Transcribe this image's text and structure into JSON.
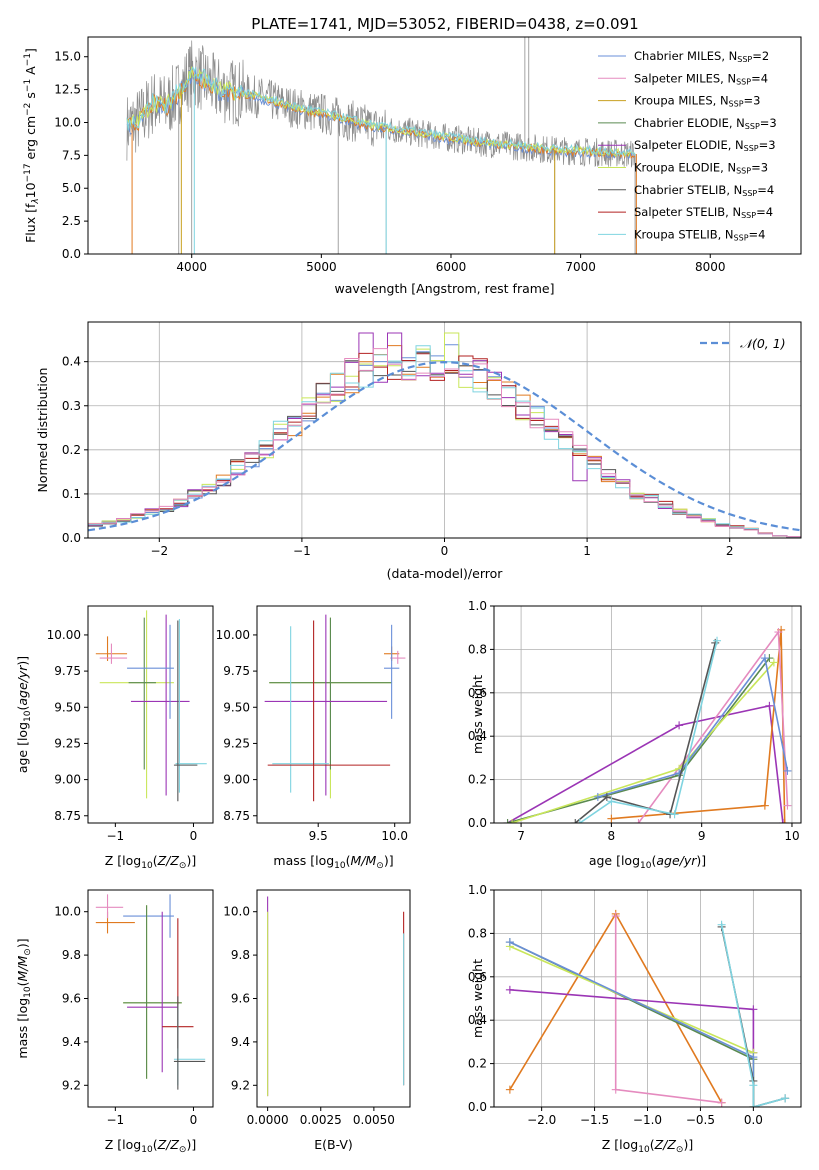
{
  "colors": {
    "chabrier_miles": "#6a8fd8",
    "salpeter_miles": "#e58bbf",
    "kroupa_miles": "#c8a020",
    "chabrier_elodie": "#5a8a50",
    "salpeter_elodie": "#9b35b5",
    "kroupa_elodie": "#c9e65a",
    "chabrier_stelib": "#555555",
    "salpeter_stelib": "#b22222",
    "kroupa_stelib": "#7fd4e0",
    "orange": "#e07a20",
    "gaussian": "#5b8ed6",
    "spectrum": "#8c8c8c"
  },
  "chart_data": [
    {
      "id": "spectrum",
      "type": "line",
      "title": "PLATE=1741, MJD=53052, FIBERID=0438, z=0.091",
      "xlabel": "wavelength [Angstrom, rest frame]",
      "ylabel": "Flux [f_λ 10^-17 erg cm^-2 s^-1 A^-1]",
      "xlim": [
        3200,
        8700
      ],
      "ylim": [
        0,
        16.5
      ],
      "xticks": [
        4000,
        5000,
        6000,
        7000,
        8000
      ],
      "yticks": [
        0.0,
        2.5,
        5.0,
        7.5,
        10.0,
        12.5,
        15.0
      ],
      "xtick_labels": [
        "4000",
        "5000",
        "6000",
        "7000",
        "8000"
      ],
      "ytick_labels": [
        "0.0",
        "2.5",
        "5.0",
        "7.5",
        "10.0",
        "12.5",
        "15.0"
      ],
      "legend_position": "top-right",
      "legend": [
        {
          "label": "Chabrier MILES, N",
          "sub": "SSP",
          "suffix": "=2",
          "color_key": "chabrier_miles"
        },
        {
          "label": "Salpeter MILES, N",
          "sub": "SSP",
          "suffix": "=4",
          "color_key": "salpeter_miles"
        },
        {
          "label": "Kroupa MILES, N",
          "sub": "SSP",
          "suffix": "=3",
          "color_key": "kroupa_miles"
        },
        {
          "label": "Chabrier ELODIE, N",
          "sub": "SSP",
          "suffix": "=3",
          "color_key": "chabrier_elodie"
        },
        {
          "label": "Salpeter ELODIE, N",
          "sub": "SSP",
          "suffix": "=3",
          "color_key": "salpeter_elodie"
        },
        {
          "label": "Kroupa ELODIE, N",
          "sub": "SSP",
          "suffix": "=3",
          "color_key": "kroupa_elodie"
        },
        {
          "label": "Chabrier STELIB, N",
          "sub": "SSP",
          "suffix": "=4",
          "color_key": "chabrier_stelib"
        },
        {
          "label": "Salpeter STELIB, N",
          "sub": "SSP",
          "suffix": "=4",
          "color_key": "salpeter_stelib"
        },
        {
          "label": "Kroupa STELIB, N",
          "sub": "SSP",
          "suffix": "=4",
          "color_key": "kroupa_stelib"
        }
      ],
      "continuum": {
        "x": [
          3500,
          3600,
          3700,
          3800,
          3900,
          4000,
          4100,
          4200,
          4400,
          4600,
          4800,
          5000,
          5200,
          5400,
          5600,
          5800,
          6000,
          6200,
          6400,
          6600,
          6800,
          7000,
          7200,
          7400
        ],
        "y": [
          9.7,
          10.2,
          11.5,
          11.2,
          12.3,
          13.8,
          13.2,
          12.5,
          12.2,
          11.7,
          11.1,
          10.7,
          10.2,
          9.7,
          9.4,
          9.1,
          8.8,
          8.5,
          8.3,
          8.1,
          7.9,
          7.8,
          7.7,
          7.6
        ]
      }
    },
    {
      "id": "residuals",
      "type": "line",
      "xlabel": "(data-model)/error",
      "ylabel": "Normed distribution",
      "xlim": [
        -2.5,
        2.5
      ],
      "ylim": [
        0,
        0.49
      ],
      "xticks": [
        -2,
        -1,
        0,
        1,
        2
      ],
      "xtick_labels": [
        "−2",
        "−1",
        "0",
        "1",
        "2"
      ],
      "yticks": [
        0.0,
        0.1,
        0.2,
        0.3,
        0.4
      ],
      "ytick_labels": [
        "0.0",
        "0.1",
        "0.2",
        "0.3",
        "0.4"
      ],
      "grid": true,
      "legend_position": "top-right",
      "legend_label": "𝒩(0, 1)",
      "bin_width": 0.1,
      "bin_start": -2.5,
      "base_histogram": [
        0.03,
        0.035,
        0.04,
        0.05,
        0.06,
        0.065,
        0.08,
        0.1,
        0.11,
        0.13,
        0.16,
        0.18,
        0.2,
        0.24,
        0.26,
        0.29,
        0.32,
        0.34,
        0.37,
        0.38,
        0.39,
        0.395,
        0.4,
        0.395,
        0.39,
        0.4,
        0.38,
        0.37,
        0.35,
        0.33,
        0.3,
        0.28,
        0.25,
        0.22,
        0.19,
        0.17,
        0.14,
        0.12,
        0.1,
        0.09,
        0.075,
        0.06,
        0.05,
        0.04,
        0.03,
        0.025,
        0.02,
        0.01,
        0.005,
        0.003
      ]
    },
    {
      "id": "age_vs_Z",
      "type": "scatter",
      "xlabel": "Z [log10(Z/Z⊙)]",
      "ylabel": "age  [log10(age/yr)]",
      "xlim": [
        -1.35,
        0.25
      ],
      "ylim": [
        8.7,
        10.2
      ],
      "xticks": [
        -1,
        0
      ],
      "xtick_labels": [
        "−1",
        "0"
      ],
      "yticks": [
        8.75,
        9.0,
        9.25,
        9.5,
        9.75,
        10.0
      ],
      "ytick_labels": [
        "8.75",
        "9.00",
        "9.25",
        "9.50",
        "9.75",
        "10.00"
      ],
      "points": [
        {
          "x": -1.1,
          "xerr": [
            0.15,
            0.25
          ],
          "y": 9.87,
          "yerr": [
            0.05,
            0.12
          ],
          "color_key": "orange"
        },
        {
          "x": -1.05,
          "xerr": [
            0.15,
            0.2
          ],
          "y": 9.84,
          "yerr": [
            0.04,
            0.1
          ],
          "color_key": "salpeter_miles"
        },
        {
          "x": -0.6,
          "xerr": [
            0.6,
            0.35
          ],
          "y": 9.67,
          "yerr": [
            0.8,
            0.5
          ],
          "color_key": "kroupa_elodie"
        },
        {
          "x": -0.63,
          "xerr": [
            0.2,
            0.15
          ],
          "y": 9.67,
          "yerr": [
            0.6,
            0.45
          ],
          "color_key": "chabrier_elodie"
        },
        {
          "x": -0.35,
          "xerr": [
            0.45,
            0.3
          ],
          "y": 9.54,
          "yerr": [
            0.65,
            0.6
          ],
          "color_key": "salpeter_elodie"
        },
        {
          "x": -0.3,
          "xerr": [
            0.55,
            0.05
          ],
          "y": 9.77,
          "yerr": [
            0.35,
            0.3
          ],
          "color_key": "chabrier_miles"
        },
        {
          "x": -0.18,
          "xerr": [
            0.05,
            0.35
          ],
          "y": 9.11,
          "yerr": [
            0.2,
            1.0
          ],
          "color_key": "kroupa_stelib"
        },
        {
          "x": -0.2,
          "xerr": [
            0.05,
            0.25
          ],
          "y": 9.1,
          "yerr": [
            0.25,
            1.0
          ],
          "color_key": "chabrier_stelib"
        }
      ]
    },
    {
      "id": "age_vs_mass",
      "type": "scatter",
      "xlabel": "mass [log10(M/M⊙)]",
      "ylabel": "",
      "xlim": [
        9.1,
        10.1
      ],
      "ylim": [
        8.7,
        10.2
      ],
      "xticks": [
        9.5,
        10.0
      ],
      "xtick_labels": [
        "9.5",
        "10.0"
      ],
      "yticks": [
        8.75,
        9.0,
        9.25,
        9.5,
        9.75,
        10.0
      ],
      "ytick_labels": [
        "8.75",
        "9.00",
        "9.25",
        "9.50",
        "9.75",
        "10.00"
      ],
      "points": [
        {
          "x": 9.98,
          "xerr": [
            0.05,
            0.05
          ],
          "y": 9.87,
          "yerr": [
            0.05,
            0.05
          ],
          "color_key": "orange"
        },
        {
          "x": 10.02,
          "xerr": [
            0.05,
            0.05
          ],
          "y": 9.84,
          "yerr": [
            0.04,
            0.05
          ],
          "color_key": "salpeter_miles"
        },
        {
          "x": 9.58,
          "xerr": [
            0.4,
            0.4
          ],
          "y": 9.67,
          "yerr": [
            0.8,
            0.45
          ],
          "color_key": "kroupa_elodie"
        },
        {
          "x": 9.58,
          "xerr": [
            0.4,
            0.4
          ],
          "y": 9.67,
          "yerr": [
            0.6,
            0.45
          ],
          "color_key": "chabrier_elodie"
        },
        {
          "x": 9.55,
          "xerr": [
            0.4,
            0.4
          ],
          "y": 9.54,
          "yerr": [
            0.65,
            0.6
          ],
          "color_key": "salpeter_elodie"
        },
        {
          "x": 9.98,
          "xerr": [
            0.05,
            0.05
          ],
          "y": 9.77,
          "yerr": [
            0.35,
            0.3
          ],
          "color_key": "chabrier_miles"
        },
        {
          "x": 9.32,
          "xerr": [
            0.12,
            0.25
          ],
          "y": 9.11,
          "yerr": [
            0.2,
            0.95
          ],
          "color_key": "kroupa_stelib"
        },
        {
          "x": 9.47,
          "xerr": [
            0.3,
            0.5
          ],
          "y": 9.1,
          "yerr": [
            0.25,
            1.0
          ],
          "color_key": "salpeter_stelib"
        }
      ]
    },
    {
      "id": "weight_vs_age",
      "type": "line",
      "xlabel": "age  [log10(age/yr)]",
      "ylabel": "mass weight",
      "xlim": [
        6.7,
        10.1
      ],
      "ylim": [
        0,
        1.0
      ],
      "xticks": [
        7,
        8,
        9,
        10
      ],
      "xtick_labels": [
        "7",
        "8",
        "9",
        "10"
      ],
      "yticks": [
        0.0,
        0.2,
        0.4,
        0.6,
        0.8,
        1.0
      ],
      "ytick_labels": [
        "0.0",
        "0.2",
        "0.4",
        "0.6",
        "0.8",
        "1.0"
      ],
      "grid": true,
      "series": [
        {
          "color_key": "salpeter_elodie",
          "x": [
            6.85,
            8.75,
            9.75,
            9.9
          ],
          "y": [
            0.0,
            0.45,
            0.54,
            0.0
          ]
        },
        {
          "color_key": "orange",
          "x": [
            8.0,
            9.7,
            9.88,
            9.92
          ],
          "y": [
            0.02,
            0.08,
            0.89,
            0.0
          ]
        },
        {
          "color_key": "salpeter_miles",
          "x": [
            8.3,
            9.85,
            9.95
          ],
          "y": [
            0.0,
            0.88,
            0.08
          ]
        },
        {
          "color_key": "chabrier_elodie",
          "x": [
            6.85,
            8.75,
            9.75
          ],
          "y": [
            0.0,
            0.22,
            0.76
          ]
        },
        {
          "color_key": "kroupa_elodie",
          "x": [
            6.9,
            8.75,
            9.8
          ],
          "y": [
            0.0,
            0.25,
            0.74
          ]
        },
        {
          "color_key": "chabrier_miles",
          "x": [
            7.85,
            8.75,
            9.7,
            9.95
          ],
          "y": [
            0.12,
            0.23,
            0.76,
            0.24
          ]
        },
        {
          "color_key": "chabrier_stelib",
          "x": [
            7.6,
            7.95,
            8.65,
            9.15
          ],
          "y": [
            0.0,
            0.12,
            0.04,
            0.83
          ]
        },
        {
          "color_key": "kroupa_stelib",
          "x": [
            7.65,
            8.0,
            8.7,
            9.17
          ],
          "y": [
            0.0,
            0.1,
            0.04,
            0.84
          ]
        }
      ]
    },
    {
      "id": "mass_vs_Z",
      "type": "scatter",
      "xlabel": "Z [log10(Z/Z⊙)]",
      "ylabel": "mass [log10(M/M⊙)]",
      "xlim": [
        -1.35,
        0.25
      ],
      "ylim": [
        9.1,
        10.1
      ],
      "xticks": [
        -1,
        0
      ],
      "xtick_labels": [
        "−1",
        "0"
      ],
      "yticks": [
        9.2,
        9.4,
        9.6,
        9.8,
        10.0
      ],
      "ytick_labels": [
        "9.2",
        "9.4",
        "9.6",
        "9.8",
        "10.0"
      ],
      "points": [
        {
          "x": -1.1,
          "xerr": [
            0.15,
            0.35
          ],
          "y": 9.95,
          "yerr": [
            0.05,
            0.05
          ],
          "color_key": "orange"
        },
        {
          "x": -1.1,
          "xerr": [
            0.15,
            0.2
          ],
          "y": 10.02,
          "yerr": [
            0.05,
            0.06
          ],
          "color_key": "salpeter_miles"
        },
        {
          "x": -0.3,
          "xerr": [
            0.6,
            0.05
          ],
          "y": 9.98,
          "yerr": [
            0.1,
            0.1
          ],
          "color_key": "chabrier_miles"
        },
        {
          "x": -0.6,
          "xerr": [
            0.3,
            0.45
          ],
          "y": 9.58,
          "yerr": [
            0.35,
            0.45
          ],
          "color_key": "kroupa_elodie"
        },
        {
          "x": -0.6,
          "xerr": [
            0.3,
            0.45
          ],
          "y": 9.58,
          "yerr": [
            0.35,
            0.45
          ],
          "color_key": "chabrier_elodie"
        },
        {
          "x": -0.4,
          "xerr": [
            0.45,
            0.2
          ],
          "y": 9.56,
          "yerr": [
            0.3,
            0.44
          ],
          "color_key": "salpeter_elodie"
        },
        {
          "x": -0.2,
          "xerr": [
            0.2,
            0.2
          ],
          "y": 9.47,
          "yerr": [
            0.1,
            0.5
          ],
          "color_key": "salpeter_stelib"
        },
        {
          "x": -0.2,
          "xerr": [
            0.05,
            0.35
          ],
          "y": 9.32,
          "yerr": [
            0.12,
            0.25
          ],
          "color_key": "kroupa_stelib"
        },
        {
          "x": -0.2,
          "xerr": [
            0.05,
            0.35
          ],
          "y": 9.31,
          "yerr": [
            0.13,
            0.3
          ],
          "color_key": "chabrier_stelib"
        }
      ]
    },
    {
      "id": "mass_vs_ebv",
      "type": "scatter",
      "xlabel": "E(B-V)",
      "ylabel": "",
      "xlim": [
        -0.0005,
        0.0067
      ],
      "ylim": [
        9.1,
        10.1
      ],
      "xticks": [
        0.0,
        0.0025,
        0.005
      ],
      "xtick_labels": [
        "0.0000",
        "0.0025",
        "0.0050"
      ],
      "yticks": [
        9.2,
        9.4,
        9.6,
        9.8,
        10.0
      ],
      "ytick_labels": [
        "9.2",
        "9.4",
        "9.6",
        "9.8",
        "10.0"
      ],
      "points": [
        {
          "x": 0.0,
          "y": 9.95,
          "yerr": [
            0.8,
            0.12
          ],
          "color_key": "salpeter_elodie"
        },
        {
          "x": 0.0,
          "y": 9.6,
          "yerr": [
            0.45,
            0.4
          ],
          "color_key": "kroupa_elodie"
        },
        {
          "x": 0.0064,
          "y": 9.9,
          "yerr": [
            0.7,
            0.1
          ],
          "color_key": "salpeter_stelib"
        },
        {
          "x": 0.0064,
          "y": 9.55,
          "yerr": [
            0.35,
            0.35
          ],
          "color_key": "kroupa_stelib"
        }
      ]
    },
    {
      "id": "weight_vs_Z",
      "type": "line",
      "xlabel": "Z [log10(Z/Z⊙)]",
      "ylabel": "mass weight",
      "xlim": [
        -2.45,
        0.45
      ],
      "ylim": [
        0,
        1.0
      ],
      "xticks": [
        -2.0,
        -1.5,
        -1.0,
        -0.5,
        0.0
      ],
      "xtick_labels": [
        "−2.0",
        "−1.5",
        "−1.0",
        "−0.5",
        "0.0"
      ],
      "yticks": [
        0.0,
        0.2,
        0.4,
        0.6,
        0.8,
        1.0
      ],
      "ytick_labels": [
        "0.0",
        "0.2",
        "0.4",
        "0.6",
        "0.8",
        "1.0"
      ],
      "grid": true,
      "series": [
        {
          "color_key": "orange",
          "x": [
            -2.3,
            -1.3,
            -0.3
          ],
          "y": [
            0.08,
            0.89,
            0.02
          ]
        },
        {
          "color_key": "salpeter_miles",
          "x": [
            -1.3,
            -1.3,
            -0.3
          ],
          "y": [
            0.88,
            0.08,
            0.02
          ]
        },
        {
          "color_key": "salpeter_elodie",
          "x": [
            -2.3,
            0.0,
            0.0
          ],
          "y": [
            0.54,
            0.45,
            0.25
          ]
        },
        {
          "color_key": "chabrier_elodie",
          "x": [
            -2.3,
            0.0,
            0.0
          ],
          "y": [
            0.76,
            0.22,
            0.0
          ]
        },
        {
          "color_key": "kroupa_elodie",
          "x": [
            -2.3,
            0.0,
            0.0
          ],
          "y": [
            0.74,
            0.25,
            0.0
          ]
        },
        {
          "color_key": "chabrier_miles",
          "x": [
            -2.3,
            0.0,
            0.0
          ],
          "y": [
            0.76,
            0.23,
            0.0
          ]
        },
        {
          "color_key": "chabrier_stelib",
          "x": [
            -0.3,
            0.0,
            0.0,
            0.3
          ],
          "y": [
            0.83,
            0.12,
            0.0,
            0.04
          ]
        },
        {
          "color_key": "kroupa_stelib",
          "x": [
            -0.3,
            0.0,
            0.0,
            0.3
          ],
          "y": [
            0.84,
            0.1,
            0.0,
            0.04
          ]
        }
      ]
    }
  ]
}
